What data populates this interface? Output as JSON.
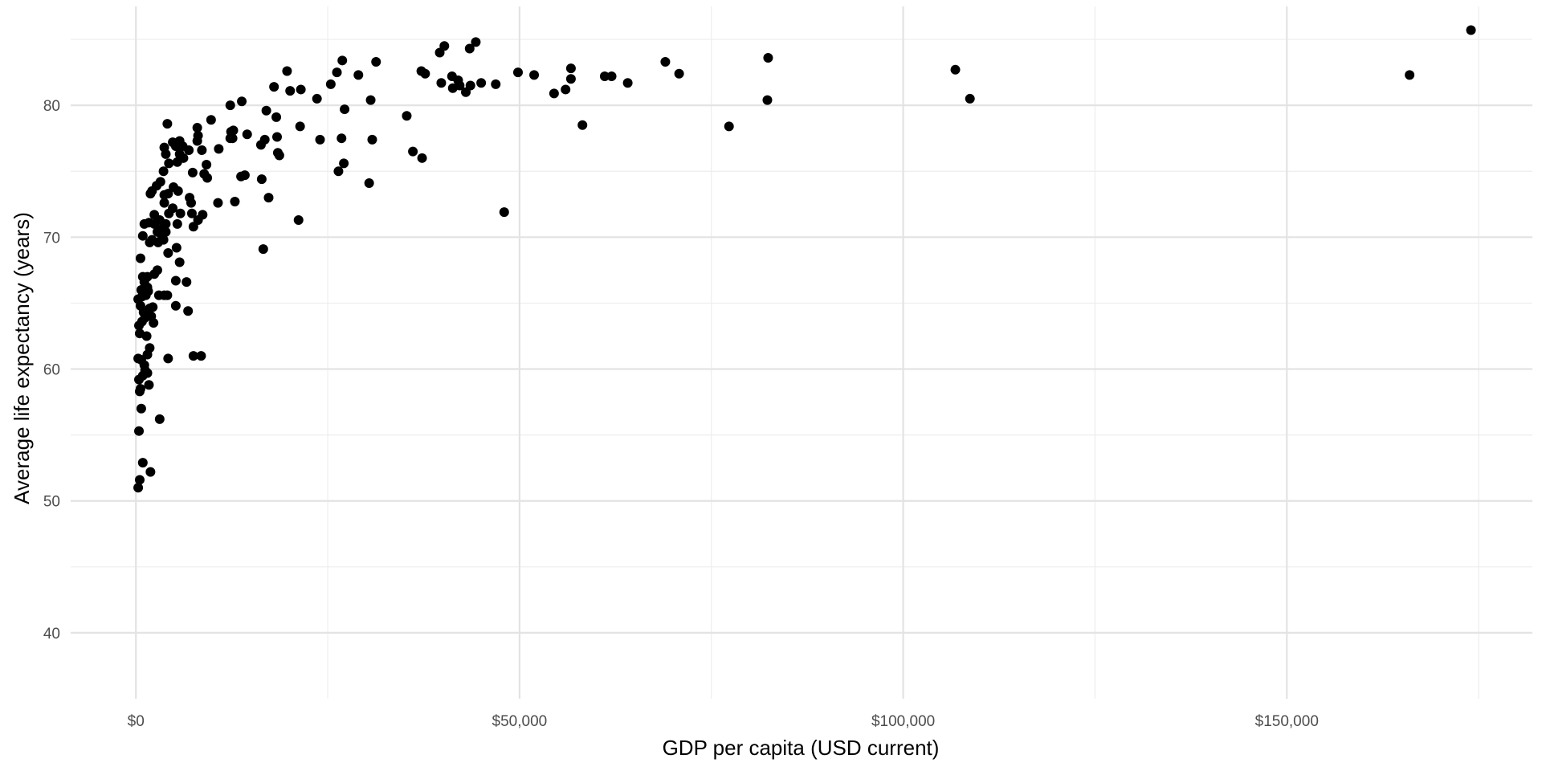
{
  "chart_data": {
    "type": "scatter",
    "title": "",
    "xlabel": "GDP per capita (USD current)",
    "ylabel": "Average life expectancy (years)",
    "xlim": [
      -8500,
      182000
    ],
    "ylim": [
      35,
      87.5
    ],
    "x_ticks": [
      0,
      50000,
      100000,
      150000
    ],
    "x_tick_labels": [
      "$0",
      "$50,000",
      "$100,000",
      "$150,000"
    ],
    "x_minor_ticks": [
      25000,
      75000,
      125000,
      175000
    ],
    "y_ticks": [
      40,
      50,
      60,
      70,
      80
    ],
    "y_tick_labels": [
      "40",
      "50",
      "60",
      "70",
      "80"
    ],
    "y_minor_ticks": [
      45,
      55,
      65,
      75,
      85
    ],
    "grid": true,
    "legend": "none",
    "point_color": "#000000",
    "series": [
      {
        "points": [
          [
            300,
            51.0
          ],
          [
            500,
            51.6
          ],
          [
            900,
            52.9
          ],
          [
            1900,
            52.2
          ],
          [
            400,
            55.3
          ],
          [
            3100,
            56.2
          ],
          [
            700,
            57.0
          ],
          [
            1700,
            58.8
          ],
          [
            500,
            58.3
          ],
          [
            600,
            58.5
          ],
          [
            400,
            59.2
          ],
          [
            900,
            59.5
          ],
          [
            1200,
            59.9
          ],
          [
            1500,
            59.7
          ],
          [
            300,
            60.8
          ],
          [
            1100,
            60.3
          ],
          [
            700,
            60.7
          ],
          [
            1500,
            61.1
          ],
          [
            1800,
            61.6
          ],
          [
            4200,
            60.8
          ],
          [
            7500,
            61.0
          ],
          [
            8500,
            61.0
          ],
          [
            500,
            62.7
          ],
          [
            1400,
            62.5
          ],
          [
            400,
            63.3
          ],
          [
            800,
            63.6
          ],
          [
            1200,
            63.9
          ],
          [
            2000,
            64.0
          ],
          [
            2300,
            63.5
          ],
          [
            1000,
            64.3
          ],
          [
            600,
            64.8
          ],
          [
            1800,
            64.6
          ],
          [
            2200,
            64.7
          ],
          [
            5200,
            64.8
          ],
          [
            6800,
            64.4
          ],
          [
            300,
            65.3
          ],
          [
            800,
            65.5
          ],
          [
            1300,
            65.6
          ],
          [
            1600,
            65.9
          ],
          [
            3000,
            65.6
          ],
          [
            3700,
            65.6
          ],
          [
            4100,
            65.6
          ],
          [
            700,
            66.0
          ],
          [
            1500,
            66.2
          ],
          [
            1100,
            66.6
          ],
          [
            5200,
            66.7
          ],
          [
            6600,
            66.6
          ],
          [
            900,
            67.0
          ],
          [
            1500,
            67.0
          ],
          [
            2400,
            67.2
          ],
          [
            2800,
            67.5
          ],
          [
            5700,
            68.1
          ],
          [
            600,
            68.4
          ],
          [
            4200,
            68.8
          ],
          [
            5300,
            69.2
          ],
          [
            16600,
            69.1
          ],
          [
            1800,
            69.6
          ],
          [
            2900,
            69.6
          ],
          [
            3600,
            69.8
          ],
          [
            900,
            70.1
          ],
          [
            2100,
            69.8
          ],
          [
            3300,
            70.2
          ],
          [
            3900,
            70.4
          ],
          [
            2800,
            70.4
          ],
          [
            3300,
            70.6
          ],
          [
            7500,
            70.8
          ],
          [
            2400,
            71.0
          ],
          [
            3900,
            71.0
          ],
          [
            5400,
            71.0
          ],
          [
            1100,
            71.0
          ],
          [
            1700,
            71.1
          ],
          [
            3100,
            71.3
          ],
          [
            8100,
            71.3
          ],
          [
            21200,
            71.3
          ],
          [
            48000,
            71.9
          ],
          [
            2400,
            71.7
          ],
          [
            4300,
            71.8
          ],
          [
            5800,
            71.8
          ],
          [
            7300,
            71.8
          ],
          [
            8700,
            71.7
          ],
          [
            4800,
            72.2
          ],
          [
            3700,
            72.6
          ],
          [
            7200,
            72.6
          ],
          [
            10700,
            72.6
          ],
          [
            12900,
            72.7
          ],
          [
            3700,
            73.2
          ],
          [
            4200,
            73.3
          ],
          [
            5500,
            73.5
          ],
          [
            1900,
            73.3
          ],
          [
            2100,
            73.5
          ],
          [
            7000,
            73.0
          ],
          [
            17300,
            73.0
          ],
          [
            2700,
            73.9
          ],
          [
            3200,
            74.2
          ],
          [
            4900,
            73.8
          ],
          [
            9300,
            74.5
          ],
          [
            30400,
            74.1
          ],
          [
            7400,
            74.9
          ],
          [
            8900,
            74.8
          ],
          [
            14200,
            74.7
          ],
          [
            13700,
            74.6
          ],
          [
            16400,
            74.4
          ],
          [
            26400,
            75.0
          ],
          [
            3600,
            75.0
          ],
          [
            4300,
            75.6
          ],
          [
            5400,
            75.7
          ],
          [
            6200,
            76.0
          ],
          [
            9200,
            75.5
          ],
          [
            27100,
            75.6
          ],
          [
            3900,
            76.3
          ],
          [
            5700,
            76.3
          ],
          [
            8600,
            76.6
          ],
          [
            10800,
            76.7
          ],
          [
            18500,
            76.4
          ],
          [
            18700,
            76.2
          ],
          [
            36100,
            76.5
          ],
          [
            37300,
            76.0
          ],
          [
            3700,
            76.8
          ],
          [
            5200,
            76.9
          ],
          [
            6100,
            76.9
          ],
          [
            6900,
            76.6
          ],
          [
            16300,
            77.0
          ],
          [
            4800,
            77.2
          ],
          [
            5700,
            77.3
          ],
          [
            8000,
            77.3
          ],
          [
            12300,
            77.5
          ],
          [
            12600,
            77.5
          ],
          [
            14500,
            77.8
          ],
          [
            16800,
            77.4
          ],
          [
            18400,
            77.6
          ],
          [
            24000,
            77.4
          ],
          [
            26800,
            77.5
          ],
          [
            30800,
            77.4
          ],
          [
            8100,
            77.7
          ],
          [
            12400,
            78.0
          ],
          [
            12700,
            78.1
          ],
          [
            8000,
            78.3
          ],
          [
            21400,
            78.4
          ],
          [
            77300,
            78.4
          ],
          [
            58200,
            78.5
          ],
          [
            4100,
            78.6
          ],
          [
            9800,
            78.9
          ],
          [
            18300,
            79.1
          ],
          [
            17000,
            79.6
          ],
          [
            27200,
            79.7
          ],
          [
            35300,
            79.2
          ],
          [
            12300,
            80.0
          ],
          [
            13800,
            80.3
          ],
          [
            23600,
            80.5
          ],
          [
            30600,
            80.4
          ],
          [
            82300,
            80.4
          ],
          [
            108700,
            80.5
          ],
          [
            54500,
            80.9
          ],
          [
            41300,
            81.3
          ],
          [
            43000,
            81.0
          ],
          [
            42200,
            81.5
          ],
          [
            20100,
            81.1
          ],
          [
            21500,
            81.2
          ],
          [
            18000,
            81.4
          ],
          [
            39800,
            81.7
          ],
          [
            43600,
            81.5
          ],
          [
            45000,
            81.7
          ],
          [
            46900,
            81.6
          ],
          [
            64100,
            81.7
          ],
          [
            56000,
            81.2
          ],
          [
            25400,
            81.6
          ],
          [
            42000,
            81.9
          ],
          [
            56700,
            82.0
          ],
          [
            61100,
            82.2
          ],
          [
            62000,
            82.2
          ],
          [
            41200,
            82.2
          ],
          [
            29000,
            82.3
          ],
          [
            51900,
            82.3
          ],
          [
            70800,
            82.4
          ],
          [
            37700,
            82.4
          ],
          [
            37200,
            82.6
          ],
          [
            19700,
            82.6
          ],
          [
            26200,
            82.5
          ],
          [
            49800,
            82.5
          ],
          [
            166000,
            82.3
          ],
          [
            106800,
            82.7
          ],
          [
            56700,
            82.8
          ],
          [
            69000,
            83.3
          ],
          [
            26900,
            83.4
          ],
          [
            31300,
            83.3
          ],
          [
            82400,
            83.6
          ],
          [
            39600,
            84.0
          ],
          [
            40200,
            84.5
          ],
          [
            43500,
            84.3
          ],
          [
            44300,
            84.8
          ],
          [
            174000,
            85.7
          ]
        ]
      }
    ]
  }
}
